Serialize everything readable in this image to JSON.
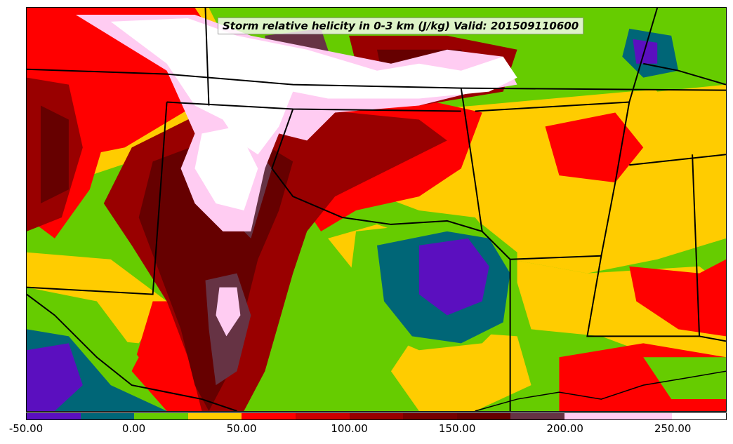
{
  "title": "Storm relative helicity in 0-3 km (J/kg) Valid: 201509110600",
  "colorbar": {
    "min": -50,
    "max": 275,
    "levels": [
      {
        "from": -50,
        "to": -25,
        "color": "#5b0fbf"
      },
      {
        "from": -25,
        "to": 0,
        "color": "#006677"
      },
      {
        "from": 0,
        "to": 25,
        "color": "#66cc00"
      },
      {
        "from": 25,
        "to": 50,
        "color": "#ffcc00"
      },
      {
        "from": 50,
        "to": 75,
        "color": "#ff0000"
      },
      {
        "from": 75,
        "to": 100,
        "color": "#cc0000"
      },
      {
        "from": 100,
        "to": 125,
        "color": "#990000"
      },
      {
        "from": 125,
        "to": 150,
        "color": "#770000"
      },
      {
        "from": 150,
        "to": 175,
        "color": "#660000"
      },
      {
        "from": 175,
        "to": 200,
        "color": "#663344"
      },
      {
        "from": 200,
        "to": 250,
        "color": "#ffccf2"
      },
      {
        "from": 250,
        "to": 275,
        "color": "#ffffff"
      }
    ],
    "tick_labels": [
      {
        "value": -50,
        "label": "-50.00"
      },
      {
        "value": 0,
        "label": "0.00"
      },
      {
        "value": 50,
        "label": "50.00"
      },
      {
        "value": 100,
        "label": "100.00"
      },
      {
        "value": 150,
        "label": "150.00"
      },
      {
        "value": 200,
        "label": "200.00"
      },
      {
        "value": 250,
        "label": "250.00"
      }
    ]
  }
}
